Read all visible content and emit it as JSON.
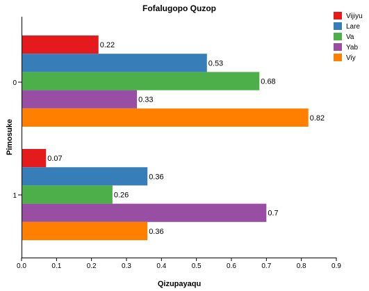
{
  "chart_data": {
    "type": "bar",
    "orientation": "horizontal",
    "title": "Fofalugopo Quzop",
    "xlabel": "Qizupayaqu",
    "ylabel": "Pimosuke",
    "categories": [
      "0",
      "1"
    ],
    "xlim": [
      0,
      0.9
    ],
    "xticks": [
      "0.0",
      "0.1",
      "0.2",
      "0.3",
      "0.4",
      "0.5",
      "0.6",
      "0.7",
      "0.8",
      "0.9"
    ],
    "grid": false,
    "legend_position": "top-right",
    "series": [
      {
        "name": "Vijiyu",
        "color": "#e41a1c",
        "values": [
          0.22,
          0.07
        ],
        "labels": [
          "0.22",
          "0.07"
        ]
      },
      {
        "name": "Lare",
        "color": "#377eb8",
        "values": [
          0.53,
          0.36
        ],
        "labels": [
          "0.53",
          "0.36"
        ]
      },
      {
        "name": "Va",
        "color": "#4daf4a",
        "values": [
          0.68,
          0.26
        ],
        "labels": [
          "0.68",
          "0.26"
        ]
      },
      {
        "name": "Yab",
        "color": "#984ea3",
        "values": [
          0.33,
          0.7
        ],
        "labels": [
          "0.33",
          "0.7"
        ]
      },
      {
        "name": "Viy",
        "color": "#ff7f00",
        "values": [
          0.82,
          0.36
        ],
        "labels": [
          "0.82",
          "0.36"
        ]
      }
    ]
  }
}
